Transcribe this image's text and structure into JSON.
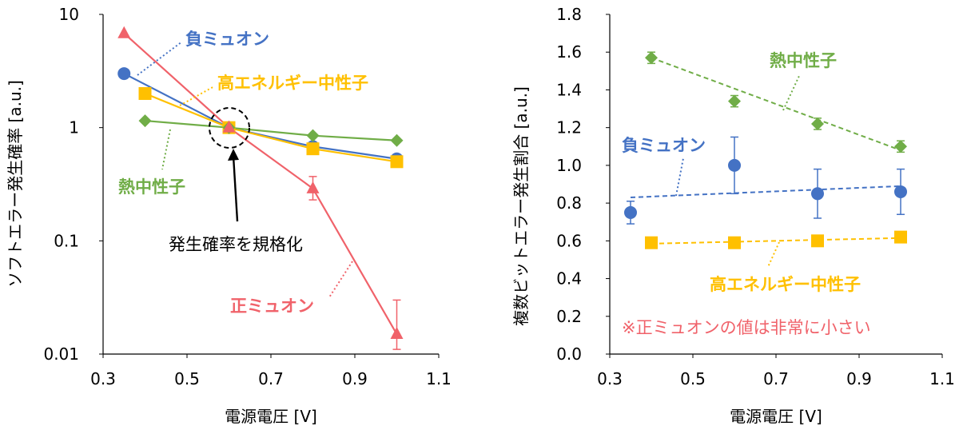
{
  "chart_data": [
    {
      "type": "line",
      "xlabel": "電源電圧 [V]",
      "ylabel": "ソフトエラー発生確率 [a.u.]",
      "xlim": [
        0.3,
        1.1
      ],
      "xticks": [
        "0.3",
        "0.5",
        "0.7",
        "0.9",
        "1.1"
      ],
      "ylim": [
        0.01,
        10
      ],
      "yscale": "log",
      "yticks": [
        "0.01",
        "0.1",
        "1",
        "10"
      ],
      "grid": false,
      "series": [
        {
          "name": "負ミュオン",
          "color": "#4472C4",
          "marker": "circle",
          "x": [
            0.35,
            0.6,
            0.8,
            1.0
          ],
          "y": [
            3.0,
            1.0,
            0.68,
            0.53
          ]
        },
        {
          "name": "高エネルギー中性子",
          "color": "#FFC000",
          "marker": "square",
          "x": [
            0.4,
            0.6,
            0.8,
            1.0
          ],
          "y": [
            2.0,
            1.0,
            0.65,
            0.5
          ]
        },
        {
          "name": "熱中性子",
          "color": "#70AD47",
          "marker": "diamond",
          "x": [
            0.4,
            0.6,
            0.8,
            1.0
          ],
          "y": [
            1.15,
            1.0,
            0.85,
            0.77
          ]
        },
        {
          "name": "正ミュオン",
          "color": "#F0626A",
          "marker": "triangle",
          "x": [
            0.35,
            0.6,
            0.8,
            1.0
          ],
          "y": [
            6.8,
            1.0,
            0.29,
            0.015
          ],
          "err_low": [
            null,
            null,
            0.23,
            0.011
          ],
          "err_high": [
            null,
            null,
            0.37,
            0.03
          ]
        }
      ],
      "annotation": "発生確率を規格化"
    },
    {
      "type": "scatter",
      "xlabel": "電源電圧 [V]",
      "ylabel": "複数ビットエラー発生割合 [a.u.]",
      "xlim": [
        0.3,
        1.1
      ],
      "xticks": [
        "0.3",
        "0.5",
        "0.7",
        "0.9",
        "1.1"
      ],
      "ylim": [
        0.0,
        1.8
      ],
      "yticks": [
        "0.0",
        "0.2",
        "0.4",
        "0.6",
        "0.8",
        "1.0",
        "1.2",
        "1.4",
        "1.6",
        "1.8"
      ],
      "grid": false,
      "series": [
        {
          "name": "熱中性子",
          "color": "#70AD47",
          "marker": "diamond",
          "x": [
            0.4,
            0.6,
            0.8,
            1.0
          ],
          "y": [
            1.57,
            1.34,
            1.22,
            1.1
          ],
          "err": [
            0.03,
            0.03,
            0.03,
            0.03
          ],
          "trend": [
            [
              0.4,
              1.57
            ],
            [
              1.0,
              1.08
            ]
          ]
        },
        {
          "name": "負ミュオン",
          "color": "#4472C4",
          "marker": "circle",
          "x": [
            0.35,
            0.6,
            0.8,
            1.0
          ],
          "y": [
            0.75,
            1.0,
            0.85,
            0.86
          ],
          "err": [
            0.06,
            0.15,
            0.13,
            0.12
          ],
          "trend": [
            [
              0.35,
              0.83
            ],
            [
              1.0,
              0.89
            ]
          ]
        },
        {
          "name": "高エネルギー中性子",
          "color": "#FFC000",
          "marker": "square",
          "x": [
            0.4,
            0.6,
            0.8,
            1.0
          ],
          "y": [
            0.59,
            0.59,
            0.6,
            0.62
          ],
          "err": [
            0.0,
            0.0,
            0.0,
            0.0
          ],
          "trend": [
            [
              0.4,
              0.585
            ],
            [
              1.0,
              0.615
            ]
          ]
        }
      ],
      "note": "※正ミュオンの値は非常に小さい"
    }
  ]
}
